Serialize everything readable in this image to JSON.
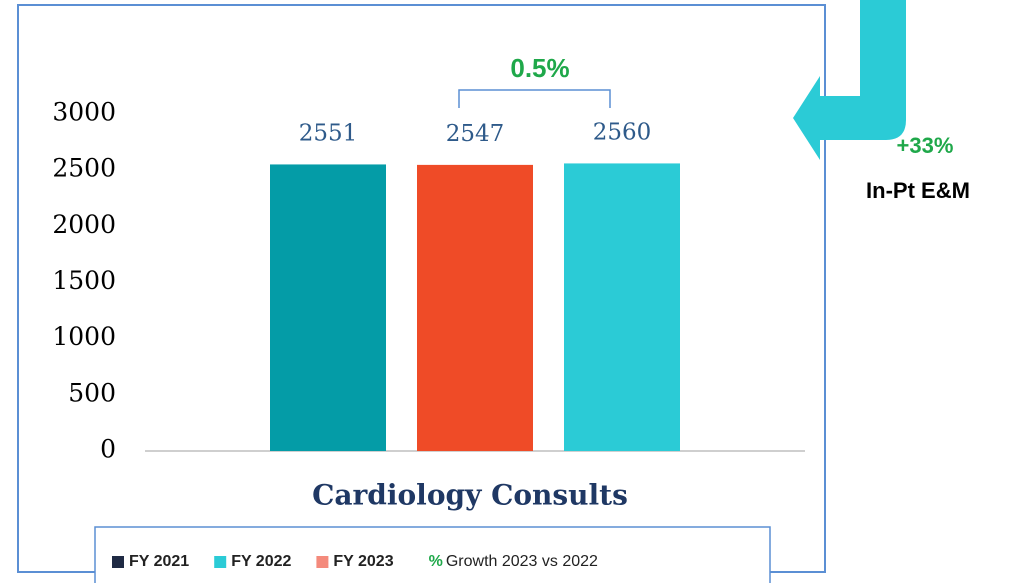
{
  "chart_data": {
    "type": "bar",
    "categories": [
      "Cardiology Consults"
    ],
    "series": [
      {
        "name": "FY 2021",
        "color": "#049ca7",
        "legend_color": "#1f2a44",
        "values": [
          2551
        ]
      },
      {
        "name": "FY 2022",
        "color": "#ef4b27",
        "legend_color": "#2bcbd6",
        "values": [
          2547
        ]
      },
      {
        "name": "FY 2023",
        "color": "#2bcbd6",
        "legend_color": "#f48a7c",
        "values": [
          2560
        ]
      }
    ],
    "legend_extra": {
      "marker": "%",
      "label": "Growth 2023 vs 2022"
    },
    "ylim": [
      0,
      3000
    ],
    "yticks": [
      0,
      500,
      1000,
      1500,
      2000,
      2500,
      3000
    ],
    "annotations": {
      "growth": "0.5%",
      "side_growth": "+33%",
      "side_label": "In-Pt E&M"
    }
  }
}
